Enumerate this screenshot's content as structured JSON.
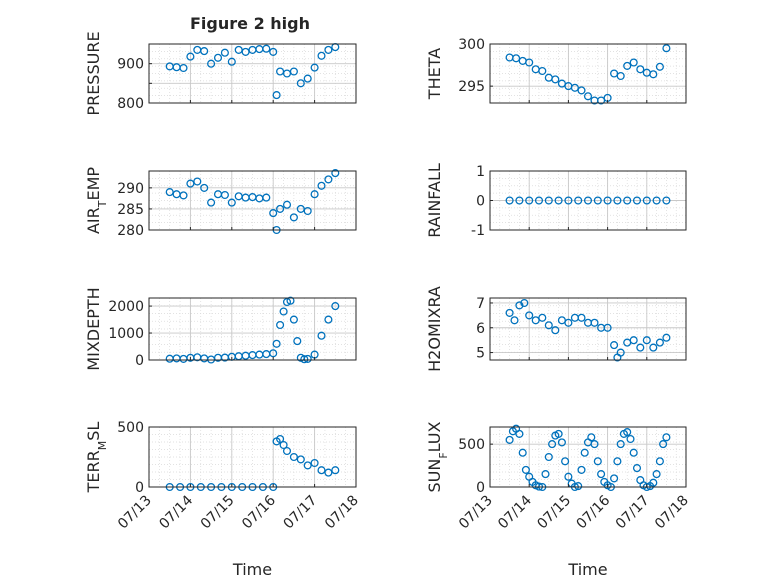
{
  "figure": {
    "title": "Figure 2 high",
    "marker_color": "#0072bd",
    "axis_color": "#262626",
    "grid_color": "#d9d9d9"
  },
  "chart_data": [
    {
      "type": "scatter",
      "ylabel": "PRESSURE",
      "ylim": [
        800,
        950
      ],
      "yticks": [
        800,
        850,
        900
      ],
      "yticklabels": [
        "800",
        "",
        "900"
      ],
      "xlim": [
        "07/13",
        "07/18"
      ],
      "xticks": [
        "07/13",
        "07/14",
        "07/15",
        "07/16",
        "07/17",
        "07/18"
      ],
      "show_xticklabels": false,
      "grid": true,
      "x": [
        "07/13 12:00",
        "07/13 16:00",
        "07/13 20:00",
        "07/14 00:00",
        "07/14 04:00",
        "07/14 08:00",
        "07/14 12:00",
        "07/14 16:00",
        "07/14 20:00",
        "07/15 00:00",
        "07/15 04:00",
        "07/15 08:00",
        "07/15 12:00",
        "07/15 16:00",
        "07/15 20:00",
        "07/16 00:00",
        "07/16 02:00",
        "07/16 04:00",
        "07/16 08:00",
        "07/16 12:00",
        "07/16 16:00",
        "07/16 20:00",
        "07/17 00:00",
        "07/17 04:00",
        "07/17 08:00",
        "07/17 12:00"
      ],
      "y": [
        893,
        891,
        889,
        918,
        935,
        932,
        900,
        915,
        928,
        905,
        935,
        930,
        935,
        937,
        938,
        930,
        820,
        880,
        875,
        880,
        850,
        862,
        890,
        920,
        935,
        942
      ]
    },
    {
      "type": "scatter",
      "ylabel": "THETA",
      "ylim": [
        293,
        300
      ],
      "yticks": [
        295,
        300
      ],
      "yticklabels": [
        "295",
        "300"
      ],
      "xlim": [
        "07/13",
        "07/18"
      ],
      "xticks": [
        "07/13",
        "07/14",
        "07/15",
        "07/16",
        "07/17",
        "07/18"
      ],
      "show_xticklabels": false,
      "grid": true,
      "x": [
        "07/13 12:00",
        "07/13 16:00",
        "07/13 20:00",
        "07/14 00:00",
        "07/14 04:00",
        "07/14 08:00",
        "07/14 12:00",
        "07/14 16:00",
        "07/14 20:00",
        "07/15 00:00",
        "07/15 04:00",
        "07/15 08:00",
        "07/15 12:00",
        "07/15 16:00",
        "07/15 20:00",
        "07/16 00:00",
        "07/16 04:00",
        "07/16 08:00",
        "07/16 12:00",
        "07/16 16:00",
        "07/16 20:00",
        "07/17 00:00",
        "07/17 04:00",
        "07/17 08:00",
        "07/17 12:00"
      ],
      "y": [
        298.4,
        298.3,
        298.0,
        297.8,
        297.0,
        296.8,
        296.0,
        295.8,
        295.3,
        295.0,
        294.8,
        294.5,
        293.8,
        293.3,
        293.3,
        293.6,
        296.5,
        296.2,
        297.4,
        297.8,
        297.0,
        296.6,
        296.4,
        297.3,
        299.5
      ]
    },
    {
      "type": "scatter",
      "ylabel": "AIR_TEMP",
      "ylim": [
        280,
        294
      ],
      "yticks": [
        280,
        285,
        290
      ],
      "yticklabels": [
        "280",
        "285",
        "290"
      ],
      "xlim": [
        "07/13",
        "07/18"
      ],
      "xticks": [
        "07/13",
        "07/14",
        "07/15",
        "07/16",
        "07/17",
        "07/18"
      ],
      "show_xticklabels": false,
      "grid": true,
      "x": [
        "07/13 12:00",
        "07/13 16:00",
        "07/13 20:00",
        "07/14 00:00",
        "07/14 04:00",
        "07/14 08:00",
        "07/14 12:00",
        "07/14 16:00",
        "07/14 20:00",
        "07/15 00:00",
        "07/15 04:00",
        "07/15 08:00",
        "07/15 12:00",
        "07/15 16:00",
        "07/15 20:00",
        "07/16 00:00",
        "07/16 02:00",
        "07/16 04:00",
        "07/16 08:00",
        "07/16 12:00",
        "07/16 16:00",
        "07/16 20:00",
        "07/17 00:00",
        "07/17 04:00",
        "07/17 08:00",
        "07/17 12:00"
      ],
      "y": [
        289.0,
        288.5,
        288.2,
        291.0,
        291.5,
        290.0,
        286.5,
        288.5,
        288.3,
        286.5,
        288.0,
        287.7,
        287.8,
        287.5,
        287.7,
        284.0,
        280.0,
        285.0,
        286.0,
        283.0,
        285.0,
        284.5,
        288.5,
        290.5,
        292.0,
        293.5
      ]
    },
    {
      "type": "scatter",
      "ylabel": "RAINFALL",
      "ylim": [
        -1,
        1
      ],
      "yticks": [
        -1,
        0,
        1
      ],
      "yticklabels": [
        "-1",
        "0",
        "1"
      ],
      "xlim": [
        "07/13",
        "07/18"
      ],
      "xticks": [
        "07/13",
        "07/14",
        "07/15",
        "07/16",
        "07/17",
        "07/18"
      ],
      "show_xticklabels": false,
      "grid": true,
      "x": [
        "07/13 12:00",
        "07/13 18:00",
        "07/14 00:00",
        "07/14 06:00",
        "07/14 12:00",
        "07/14 18:00",
        "07/15 00:00",
        "07/15 06:00",
        "07/15 12:00",
        "07/15 18:00",
        "07/16 00:00",
        "07/16 06:00",
        "07/16 12:00",
        "07/16 18:00",
        "07/17 00:00",
        "07/17 06:00",
        "07/17 12:00"
      ],
      "y": [
        0,
        0,
        0,
        0,
        0,
        0,
        0,
        0,
        0,
        0,
        0,
        0,
        0,
        0,
        0,
        0,
        0
      ]
    },
    {
      "type": "scatter",
      "ylabel": "MIXDEPTH",
      "ylim": [
        0,
        2300
      ],
      "yticks": [
        0,
        1000,
        2000
      ],
      "yticklabels": [
        "0",
        "1000",
        "2000"
      ],
      "xlim": [
        "07/13",
        "07/18"
      ],
      "xticks": [
        "07/13",
        "07/14",
        "07/15",
        "07/16",
        "07/17",
        "07/18"
      ],
      "show_xticklabels": false,
      "grid": true,
      "x": [
        "07/13 12:00",
        "07/13 16:00",
        "07/13 20:00",
        "07/14 00:00",
        "07/14 04:00",
        "07/14 08:00",
        "07/14 12:00",
        "07/14 16:00",
        "07/14 20:00",
        "07/15 00:00",
        "07/15 04:00",
        "07/15 08:00",
        "07/15 12:00",
        "07/15 16:00",
        "07/15 20:00",
        "07/16 00:00",
        "07/16 02:00",
        "07/16 04:00",
        "07/16 06:00",
        "07/16 08:00",
        "07/16 10:00",
        "07/16 12:00",
        "07/16 14:00",
        "07/16 16:00",
        "07/16 18:00",
        "07/16 20:00",
        "07/17 00:00",
        "07/17 04:00",
        "07/17 08:00",
        "07/17 12:00"
      ],
      "y": [
        50,
        60,
        40,
        80,
        100,
        60,
        20,
        80,
        90,
        120,
        140,
        160,
        180,
        200,
        220,
        250,
        600,
        1300,
        1800,
        2150,
        2200,
        1500,
        700,
        80,
        30,
        40,
        200,
        900,
        1500,
        2000
      ]
    },
    {
      "type": "scatter",
      "ylabel": "H2OMIXRA",
      "ylim": [
        4.7,
        7.2
      ],
      "yticks": [
        5,
        6,
        7
      ],
      "yticklabels": [
        "5",
        "6",
        "7"
      ],
      "xlim": [
        "07/13",
        "07/18"
      ],
      "xticks": [
        "07/13",
        "07/14",
        "07/15",
        "07/16",
        "07/17",
        "07/18"
      ],
      "show_xticklabels": false,
      "grid": true,
      "x": [
        "07/13 12:00",
        "07/13 15:00",
        "07/13 18:00",
        "07/13 21:00",
        "07/14 00:00",
        "07/14 04:00",
        "07/14 08:00",
        "07/14 12:00",
        "07/14 16:00",
        "07/14 20:00",
        "07/15 00:00",
        "07/15 04:00",
        "07/15 08:00",
        "07/15 12:00",
        "07/15 16:00",
        "07/15 20:00",
        "07/16 00:00",
        "07/16 04:00",
        "07/16 06:00",
        "07/16 08:00",
        "07/16 12:00",
        "07/16 16:00",
        "07/16 20:00",
        "07/17 00:00",
        "07/17 04:00",
        "07/17 08:00",
        "07/17 12:00"
      ],
      "y": [
        6.6,
        6.3,
        6.9,
        7.0,
        6.5,
        6.3,
        6.4,
        6.1,
        5.9,
        6.3,
        6.2,
        6.4,
        6.4,
        6.2,
        6.2,
        6.0,
        6.0,
        5.3,
        4.8,
        5.0,
        5.4,
        5.5,
        5.2,
        5.5,
        5.2,
        5.4,
        5.6
      ]
    },
    {
      "type": "scatter",
      "ylabel": "TERR_MSL",
      "ylim": [
        0,
        500
      ],
      "yticks": [
        0,
        500
      ],
      "yticklabels": [
        "0",
        "500"
      ],
      "xlim": [
        "07/13",
        "07/18"
      ],
      "xticks": [
        "07/13",
        "07/14",
        "07/15",
        "07/16",
        "07/17",
        "07/18"
      ],
      "xticklabels": [
        "07/13",
        "07/14",
        "07/15",
        "07/16",
        "07/17",
        "07/18"
      ],
      "show_xticklabels": true,
      "xlabel": "Time",
      "grid": true,
      "x": [
        "07/13 12:00",
        "07/13 18:00",
        "07/14 00:00",
        "07/14 06:00",
        "07/14 12:00",
        "07/14 18:00",
        "07/15 00:00",
        "07/15 06:00",
        "07/15 12:00",
        "07/15 18:00",
        "07/16 00:00",
        "07/16 02:00",
        "07/16 04:00",
        "07/16 06:00",
        "07/16 08:00",
        "07/16 12:00",
        "07/16 16:00",
        "07/16 20:00",
        "07/17 00:00",
        "07/17 04:00",
        "07/17 08:00",
        "07/17 12:00"
      ],
      "y": [
        0,
        0,
        0,
        0,
        0,
        0,
        0,
        0,
        0,
        0,
        0,
        380,
        400,
        350,
        300,
        250,
        230,
        180,
        200,
        140,
        120,
        140
      ]
    },
    {
      "type": "scatter",
      "ylabel": "SUN_FLUX",
      "ylim": [
        0,
        700
      ],
      "yticks": [
        0,
        500
      ],
      "yticklabels": [
        "0",
        "500"
      ],
      "xlim": [
        "07/13",
        "07/18"
      ],
      "xticks": [
        "07/13",
        "07/14",
        "07/15",
        "07/16",
        "07/17",
        "07/18"
      ],
      "xticklabels": [
        "07/13",
        "07/14",
        "07/15",
        "07/16",
        "07/17",
        "07/18"
      ],
      "show_xticklabels": true,
      "xlabel": "Time",
      "grid": true,
      "x": [
        "07/13 12:00",
        "07/13 14:00",
        "07/13 16:00",
        "07/13 18:00",
        "07/13 20:00",
        "07/13 22:00",
        "07/14 00:00",
        "07/14 02:00",
        "07/14 04:00",
        "07/14 06:00",
        "07/14 08:00",
        "07/14 10:00",
        "07/14 12:00",
        "07/14 14:00",
        "07/14 16:00",
        "07/14 18:00",
        "07/14 20:00",
        "07/14 22:00",
        "07/15 00:00",
        "07/15 02:00",
        "07/15 04:00",
        "07/15 06:00",
        "07/15 08:00",
        "07/15 10:00",
        "07/15 12:00",
        "07/15 14:00",
        "07/15 16:00",
        "07/15 18:00",
        "07/15 20:00",
        "07/15 22:00",
        "07/16 00:00",
        "07/16 02:00",
        "07/16 04:00",
        "07/16 06:00",
        "07/16 08:00",
        "07/16 10:00",
        "07/16 12:00",
        "07/16 14:00",
        "07/16 16:00",
        "07/16 18:00",
        "07/16 20:00",
        "07/16 22:00",
        "07/17 00:00",
        "07/17 02:00",
        "07/17 04:00",
        "07/17 06:00",
        "07/17 08:00",
        "07/17 10:00",
        "07/17 12:00"
      ],
      "y": [
        550,
        650,
        680,
        620,
        400,
        200,
        120,
        60,
        20,
        5,
        0,
        150,
        350,
        500,
        600,
        620,
        520,
        300,
        120,
        40,
        0,
        10,
        200,
        400,
        520,
        580,
        500,
        300,
        150,
        60,
        20,
        0,
        100,
        300,
        500,
        620,
        640,
        560,
        400,
        220,
        80,
        20,
        0,
        10,
        50,
        150,
        300,
        500,
        580
      ]
    }
  ]
}
